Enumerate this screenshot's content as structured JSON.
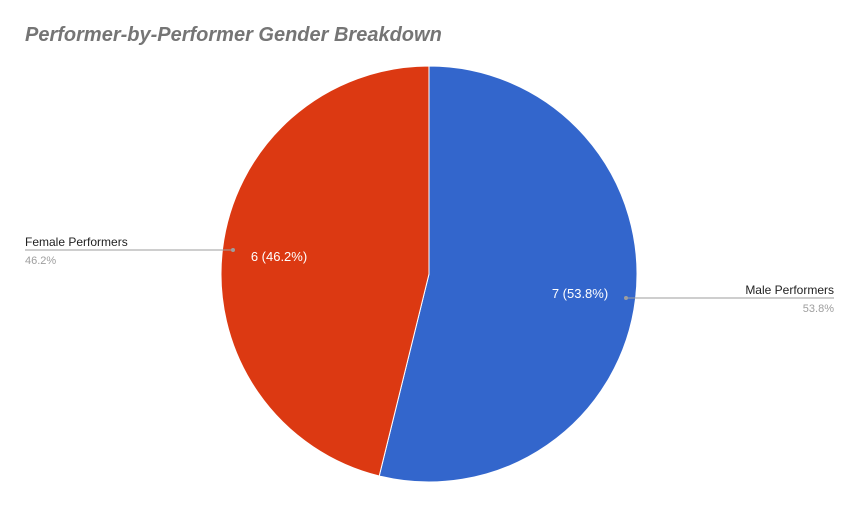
{
  "chart_data": {
    "type": "pie",
    "title": "Performer-by-Performer Gender Breakdown",
    "slices": [
      {
        "label": "Male Performers",
        "value": 7,
        "percent_label": "53.8%",
        "data_label": "7 (53.8%)",
        "color": "#3366cc"
      },
      {
        "label": "Female Performers",
        "value": 6,
        "percent_label": "46.2%",
        "data_label": "6 (46.2%)",
        "color": "#dc3912"
      }
    ]
  }
}
